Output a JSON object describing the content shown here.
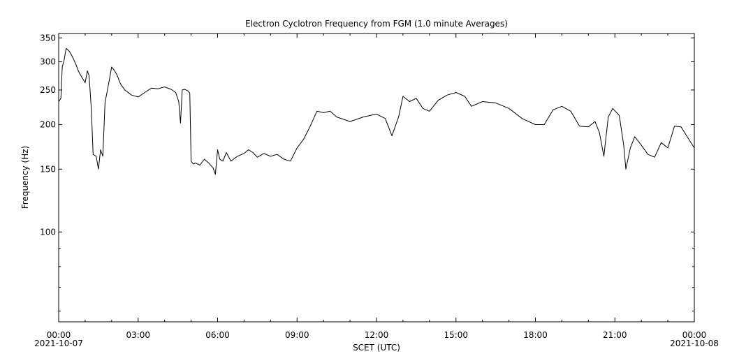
{
  "chart_data": {
    "type": "line",
    "title": "Electron Cyclotron Frequency from FGM (1.0 minute Averages)",
    "xlabel": "SCET (UTC)",
    "ylabel": "Frequency (Hz)",
    "y_scale": "log",
    "ylim": [
      56,
      360
    ],
    "xlim": [
      "2021-10-07 00:00",
      "2021-10-08 00:00"
    ],
    "x_ticks": [
      {
        "value": "2021-10-07 00:00",
        "label": "00:00",
        "date": "2021-10-07"
      },
      {
        "value": "2021-10-07 03:00",
        "label": "03:00",
        "date": ""
      },
      {
        "value": "2021-10-07 06:00",
        "label": "06:00",
        "date": ""
      },
      {
        "value": "2021-10-07 09:00",
        "label": "09:00",
        "date": ""
      },
      {
        "value": "2021-10-07 12:00",
        "label": "12:00",
        "date": ""
      },
      {
        "value": "2021-10-07 15:00",
        "label": "15:00",
        "date": ""
      },
      {
        "value": "2021-10-07 18:00",
        "label": "18:00",
        "date": ""
      },
      {
        "value": "2021-10-07 21:00",
        "label": "21:00",
        "date": ""
      },
      {
        "value": "2021-10-08 00:00",
        "label": "00:00",
        "date": "2021-10-08"
      }
    ],
    "y_ticks": [
      {
        "value": 100,
        "label": "100"
      },
      {
        "value": 150,
        "label": "150"
      },
      {
        "value": 200,
        "label": "200"
      },
      {
        "value": 250,
        "label": "250"
      },
      {
        "value": 300,
        "label": "300"
      },
      {
        "value": 350,
        "label": "350"
      }
    ],
    "series": [
      {
        "color": "#000000",
        "points": [
          [
            "2021-10-07 00:00",
            232
          ],
          [
            "2021-10-07 00:05",
            237
          ],
          [
            "2021-10-07 00:08",
            290
          ],
          [
            "2021-10-07 00:12",
            302
          ],
          [
            "2021-10-07 00:17",
            327
          ],
          [
            "2021-10-07 00:24",
            321
          ],
          [
            "2021-10-07 00:31",
            310
          ],
          [
            "2021-10-07 00:38",
            297
          ],
          [
            "2021-10-07 00:45",
            282
          ],
          [
            "2021-10-07 00:52",
            272
          ],
          [
            "2021-10-07 01:00",
            262
          ],
          [
            "2021-10-07 01:05",
            283
          ],
          [
            "2021-10-07 01:09",
            274
          ],
          [
            "2021-10-07 01:14",
            220
          ],
          [
            "2021-10-07 01:18",
            165
          ],
          [
            "2021-10-07 01:25",
            163
          ],
          [
            "2021-10-07 01:30",
            150
          ],
          [
            "2021-10-07 01:35",
            170
          ],
          [
            "2021-10-07 01:40",
            163
          ],
          [
            "2021-10-07 01:45",
            231
          ],
          [
            "2021-10-07 01:50",
            248
          ],
          [
            "2021-10-07 01:55",
            268
          ],
          [
            "2021-10-07 02:00",
            290
          ],
          [
            "2021-10-07 02:05",
            285
          ],
          [
            "2021-10-07 02:12",
            276
          ],
          [
            "2021-10-07 02:20",
            260
          ],
          [
            "2021-10-07 02:30",
            250
          ],
          [
            "2021-10-07 02:45",
            242
          ],
          [
            "2021-10-07 03:00",
            239
          ],
          [
            "2021-10-07 03:15",
            246
          ],
          [
            "2021-10-07 03:30",
            253
          ],
          [
            "2021-10-07 03:45",
            252
          ],
          [
            "2021-10-07 04:00",
            255
          ],
          [
            "2021-10-07 04:15",
            251
          ],
          [
            "2021-10-07 04:25",
            246
          ],
          [
            "2021-10-07 04:32",
            232
          ],
          [
            "2021-10-07 04:36",
            202
          ],
          [
            "2021-10-07 04:40",
            250
          ],
          [
            "2021-10-07 04:45",
            251
          ],
          [
            "2021-10-07 04:52",
            249
          ],
          [
            "2021-10-07 04:57",
            245
          ],
          [
            "2021-10-07 05:00",
            158
          ],
          [
            "2021-10-07 05:05",
            155
          ],
          [
            "2021-10-07 05:10",
            156
          ],
          [
            "2021-10-07 05:20",
            154
          ],
          [
            "2021-10-07 05:30",
            160
          ],
          [
            "2021-10-07 05:40",
            156
          ],
          [
            "2021-10-07 05:50",
            151
          ],
          [
            "2021-10-07 05:55",
            145
          ],
          [
            "2021-10-07 06:00",
            170
          ],
          [
            "2021-10-07 06:05",
            160
          ],
          [
            "2021-10-07 06:12",
            158
          ],
          [
            "2021-10-07 06:20",
            167
          ],
          [
            "2021-10-07 06:30",
            158
          ],
          [
            "2021-10-07 06:45",
            163
          ],
          [
            "2021-10-07 07:00",
            166
          ],
          [
            "2021-10-07 07:10",
            170
          ],
          [
            "2021-10-07 07:20",
            167
          ],
          [
            "2021-10-07 07:30",
            162
          ],
          [
            "2021-10-07 07:45",
            166
          ],
          [
            "2021-10-07 08:00",
            163
          ],
          [
            "2021-10-07 08:15",
            165
          ],
          [
            "2021-10-07 08:30",
            160
          ],
          [
            "2021-10-07 08:45",
            158
          ],
          [
            "2021-10-07 09:00",
            172
          ],
          [
            "2021-10-07 09:15",
            182
          ],
          [
            "2021-10-07 09:30",
            198
          ],
          [
            "2021-10-07 09:45",
            218
          ],
          [
            "2021-10-07 10:00",
            216
          ],
          [
            "2021-10-07 10:15",
            218
          ],
          [
            "2021-10-07 10:30",
            210
          ],
          [
            "2021-10-07 11:00",
            204
          ],
          [
            "2021-10-07 11:30",
            210
          ],
          [
            "2021-10-07 12:00",
            214
          ],
          [
            "2021-10-07 12:20",
            208
          ],
          [
            "2021-10-07 12:35",
            186
          ],
          [
            "2021-10-07 12:50",
            210
          ],
          [
            "2021-10-07 13:00",
            240
          ],
          [
            "2021-10-07 13:15",
            232
          ],
          [
            "2021-10-07 13:30",
            237
          ],
          [
            "2021-10-07 13:45",
            222
          ],
          [
            "2021-10-07 14:00",
            218
          ],
          [
            "2021-10-07 14:20",
            234
          ],
          [
            "2021-10-07 14:40",
            242
          ],
          [
            "2021-10-07 15:00",
            246
          ],
          [
            "2021-10-07 15:20",
            240
          ],
          [
            "2021-10-07 15:35",
            225
          ],
          [
            "2021-10-07 16:00",
            232
          ],
          [
            "2021-10-07 16:30",
            230
          ],
          [
            "2021-10-07 17:00",
            222
          ],
          [
            "2021-10-07 17:30",
            208
          ],
          [
            "2021-10-07 18:00",
            200
          ],
          [
            "2021-10-07 18:20",
            200
          ],
          [
            "2021-10-07 18:40",
            220
          ],
          [
            "2021-10-07 19:00",
            225
          ],
          [
            "2021-10-07 19:20",
            218
          ],
          [
            "2021-10-07 19:40",
            198
          ],
          [
            "2021-10-07 20:00",
            197
          ],
          [
            "2021-10-07 20:15",
            204
          ],
          [
            "2021-10-07 20:25",
            190
          ],
          [
            "2021-10-07 20:35",
            163
          ],
          [
            "2021-10-07 20:45",
            210
          ],
          [
            "2021-10-07 20:55",
            222
          ],
          [
            "2021-10-07 21:10",
            212
          ],
          [
            "2021-10-07 21:20",
            175
          ],
          [
            "2021-10-07 21:25",
            150
          ],
          [
            "2021-10-07 21:35",
            172
          ],
          [
            "2021-10-07 21:45",
            185
          ],
          [
            "2021-10-07 22:00",
            175
          ],
          [
            "2021-10-07 22:15",
            165
          ],
          [
            "2021-10-07 22:30",
            162
          ],
          [
            "2021-10-07 22:45",
            178
          ],
          [
            "2021-10-07 23:00",
            172
          ],
          [
            "2021-10-07 23:15",
            198
          ],
          [
            "2021-10-07 23:30",
            197
          ],
          [
            "2021-10-07 23:45",
            184
          ],
          [
            "2021-10-08 00:00",
            172
          ]
        ]
      }
    ]
  }
}
